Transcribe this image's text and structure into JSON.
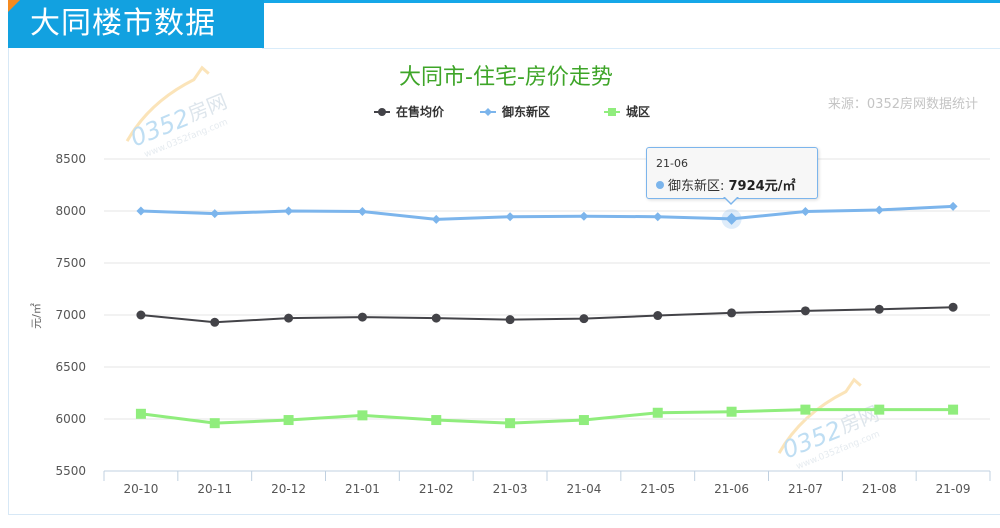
{
  "header": {
    "banner_title": "大同楼市数据",
    "accent_color": "#12a1e0",
    "corner_color": "#f58a1f"
  },
  "chart": {
    "title": "大同市-住宅-房价走势",
    "title_color": "#3ea528",
    "source": "来源：0352房网数据统计",
    "y_axis_label": "元/㎡",
    "watermark": "0352房网 www.0352fang.com",
    "legend": [
      {
        "name": "在售均价",
        "color": "#434348",
        "marker": "circle"
      },
      {
        "name": "御东新区",
        "color": "#7cb5ec",
        "marker": "diamond"
      },
      {
        "name": "城区",
        "color": "#90ed7d",
        "marker": "square"
      }
    ],
    "tooltip": {
      "date": "21-06",
      "series": "御东新区: ",
      "value": "7924元/㎡"
    }
  },
  "chart_data": {
    "type": "line",
    "title": "大同市-住宅-房价走势",
    "xlabel": "",
    "ylabel": "元/㎡",
    "ylim": [
      5500,
      8500
    ],
    "yticks": [
      5500,
      6000,
      6500,
      7000,
      7500,
      8000,
      8500
    ],
    "grid": true,
    "legend_position": "top",
    "categories": [
      "20-10",
      "20-11",
      "20-12",
      "21-01",
      "21-02",
      "21-03",
      "21-04",
      "21-05",
      "21-06",
      "21-07",
      "21-08",
      "21-09"
    ],
    "series": [
      {
        "name": "在售均价",
        "color": "#434348",
        "values": [
          7000,
          6930,
          6970,
          6980,
          6970,
          6955,
          6965,
          6995,
          7020,
          7040,
          7055,
          7075
        ]
      },
      {
        "name": "御东新区",
        "color": "#7cb5ec",
        "values": [
          8000,
          7975,
          8000,
          7995,
          7920,
          7945,
          7950,
          7945,
          7924,
          7995,
          8010,
          8045
        ]
      },
      {
        "name": "城区",
        "color": "#90ed7d",
        "values": [
          6050,
          5960,
          5990,
          6035,
          5990,
          5960,
          5990,
          6060,
          6070,
          6090,
          6090,
          6090
        ]
      }
    ],
    "annotations": [
      {
        "category": "21-06",
        "series": "御东新区",
        "text": "7924元/㎡"
      }
    ],
    "source": "来源：0352房网数据统计"
  }
}
